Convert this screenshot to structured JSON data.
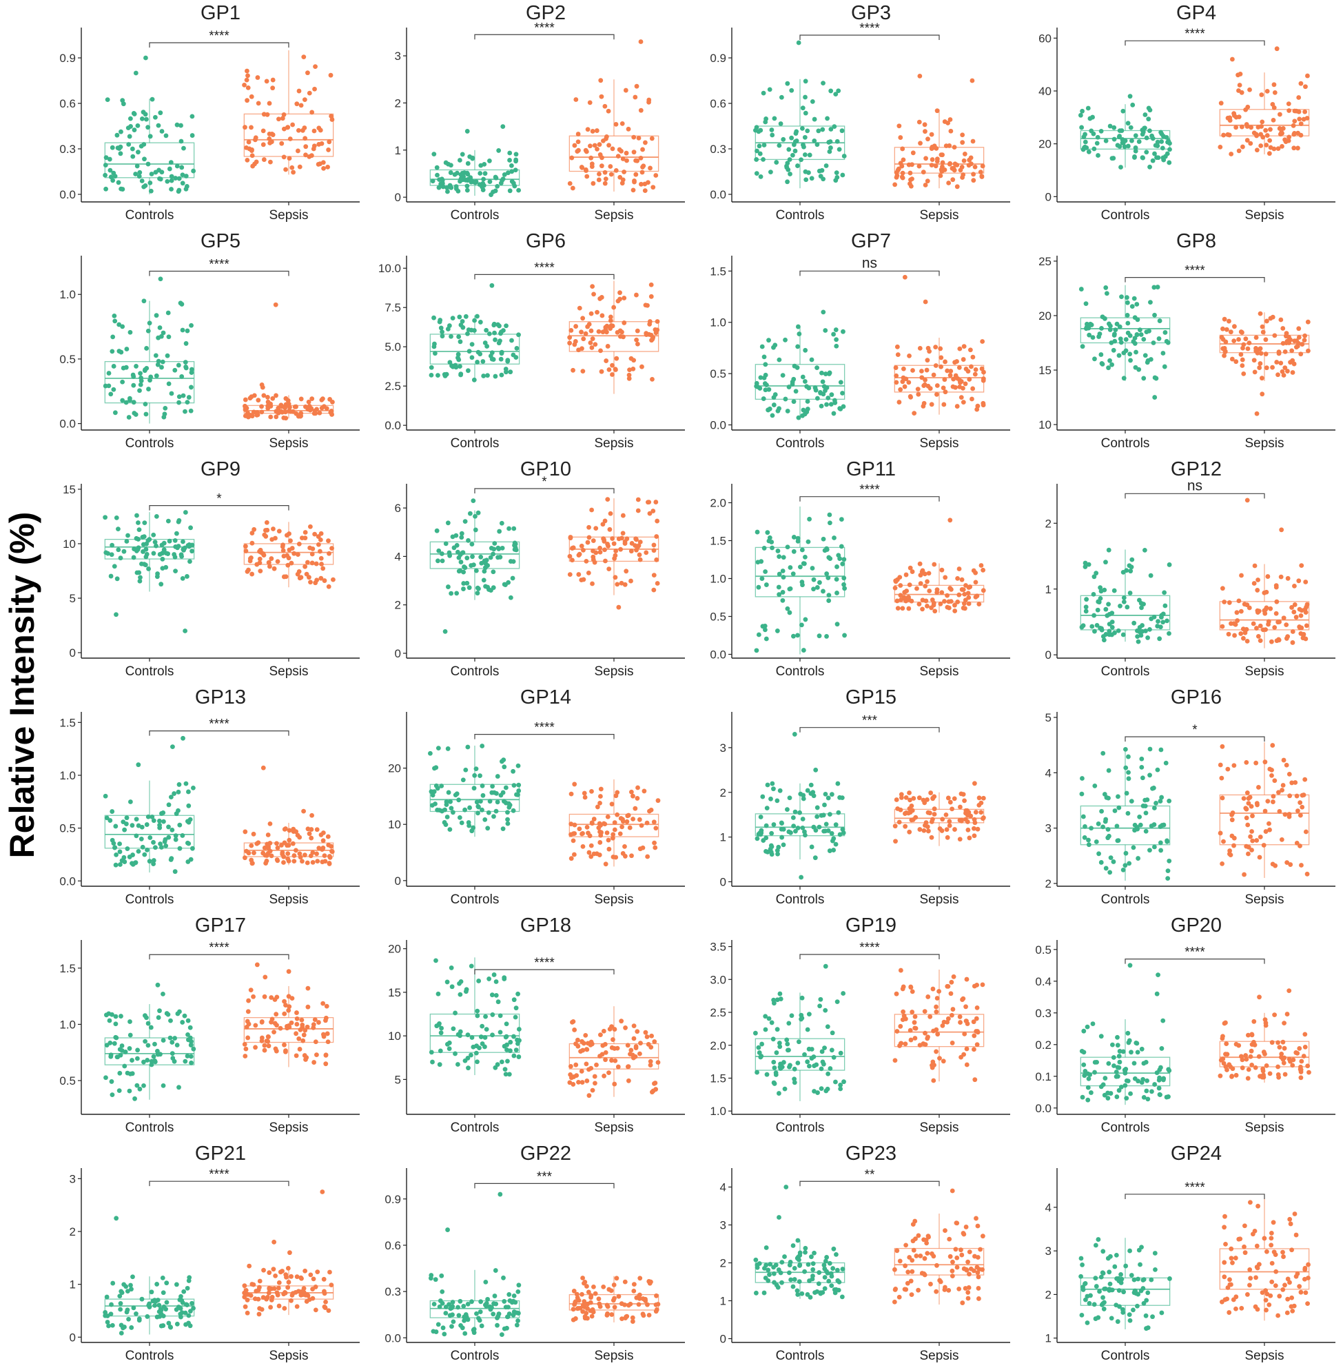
{
  "figure": {
    "ylabel": "Relative Intensity (%)",
    "group_labels": [
      "Controls",
      "Sepsis"
    ],
    "colors": {
      "controls": "#3bb38a",
      "sepsis": "#f47d4a",
      "axis": "#222222",
      "text": "#222222"
    }
  },
  "chart_data": [
    {
      "type": "box",
      "title": "GP1",
      "ylim": [
        -0.05,
        1.1
      ],
      "ticks": [
        0.0,
        0.3,
        0.6,
        0.9
      ],
      "tick_labels": [
        "0.0",
        "0.3",
        "0.6",
        "0.9"
      ],
      "sig": "****",
      "bracket_y": 1.0,
      "groups": [
        {
          "name": "Controls",
          "q1": 0.11,
          "median": 0.2,
          "q3": 0.34,
          "wlo": 0.0,
          "whi": 0.63,
          "outliers": [
            0.8,
            0.9
          ]
        },
        {
          "name": "Sepsis",
          "q1": 0.25,
          "median": 0.36,
          "q3": 0.53,
          "wlo": 0.13,
          "whi": 0.95,
          "outliers": []
        }
      ]
    },
    {
      "type": "box",
      "title": "GP2",
      "ylim": [
        -0.1,
        3.6
      ],
      "ticks": [
        0,
        1,
        2,
        3
      ],
      "tick_labels": [
        "0",
        "1",
        "2",
        "3"
      ],
      "sig": "****",
      "bracket_y": 3.45,
      "groups": [
        {
          "name": "Controls",
          "q1": 0.25,
          "median": 0.38,
          "q3": 0.58,
          "wlo": 0.03,
          "whi": 1.0,
          "outliers": [
            1.4,
            1.5
          ]
        },
        {
          "name": "Sepsis",
          "q1": 0.55,
          "median": 0.85,
          "q3": 1.3,
          "wlo": 0.12,
          "whi": 2.5,
          "outliers": [
            3.3
          ]
        }
      ]
    },
    {
      "type": "box",
      "title": "GP3",
      "ylim": [
        -0.05,
        1.1
      ],
      "ticks": [
        0.0,
        0.3,
        0.6,
        0.9
      ],
      "tick_labels": [
        "0.0",
        "0.3",
        "0.6",
        "0.9"
      ],
      "sig": "****",
      "bracket_y": 1.05,
      "groups": [
        {
          "name": "Controls",
          "q1": 0.23,
          "median": 0.34,
          "q3": 0.45,
          "wlo": 0.04,
          "whi": 0.76,
          "outliers": [
            1.0
          ]
        },
        {
          "name": "Sepsis",
          "q1": 0.14,
          "median": 0.2,
          "q3": 0.31,
          "wlo": 0.04,
          "whi": 0.56,
          "outliers": [
            0.75,
            0.78
          ]
        }
      ]
    },
    {
      "type": "box",
      "title": "GP4",
      "ylim": [
        -2,
        64
      ],
      "ticks": [
        0,
        20,
        40,
        60
      ],
      "tick_labels": [
        "0",
        "20",
        "40",
        "60"
      ],
      "sig": "****",
      "bracket_y": 59,
      "groups": [
        {
          "name": "Controls",
          "q1": 18,
          "median": 22,
          "q3": 25,
          "wlo": 11,
          "whi": 35,
          "outliers": [
            38
          ]
        },
        {
          "name": "Sepsis",
          "q1": 23,
          "median": 27,
          "q3": 33,
          "wlo": 16,
          "whi": 47,
          "outliers": [
            52,
            56
          ]
        }
      ]
    },
    {
      "type": "box",
      "title": "GP5",
      "ylim": [
        -0.05,
        1.3
      ],
      "ticks": [
        0.0,
        0.5,
        1.0
      ],
      "tick_labels": [
        "0.0",
        "0.5",
        "1.0"
      ],
      "sig": "****",
      "bracket_y": 1.18,
      "groups": [
        {
          "name": "Controls",
          "q1": 0.16,
          "median": 0.35,
          "q3": 0.48,
          "wlo": 0.0,
          "whi": 0.95,
          "outliers": [
            1.12
          ]
        },
        {
          "name": "Sepsis",
          "q1": 0.08,
          "median": 0.1,
          "q3": 0.14,
          "wlo": 0.04,
          "whi": 0.22,
          "outliers": [
            0.28,
            0.3,
            0.92
          ]
        }
      ]
    },
    {
      "type": "box",
      "title": "GP6",
      "ylim": [
        -0.3,
        10.8
      ],
      "ticks": [
        0.0,
        2.5,
        5.0,
        7.5,
        10.0
      ],
      "tick_labels": [
        "0.0",
        "2.5",
        "5.0",
        "7.5",
        "10.0"
      ],
      "sig": "****",
      "bracket_y": 9.6,
      "groups": [
        {
          "name": "Controls",
          "q1": 3.9,
          "median": 4.7,
          "q3": 5.8,
          "wlo": 2.8,
          "whi": 7.0,
          "outliers": [
            8.9
          ]
        },
        {
          "name": "Sepsis",
          "q1": 4.7,
          "median": 5.7,
          "q3": 6.6,
          "wlo": 2.0,
          "whi": 9.2,
          "outliers": []
        }
      ]
    },
    {
      "type": "box",
      "title": "GP7",
      "ylim": [
        -0.05,
        1.65
      ],
      "ticks": [
        0.0,
        0.5,
        1.0,
        1.5
      ],
      "tick_labels": [
        "0.0",
        "0.5",
        "1.0",
        "1.5"
      ],
      "sig": "ns",
      "bracket_y": 1.5,
      "groups": [
        {
          "name": "Controls",
          "q1": 0.25,
          "median": 0.38,
          "q3": 0.59,
          "wlo": 0.05,
          "whi": 0.96,
          "outliers": [
            1.1
          ]
        },
        {
          "name": "Sepsis",
          "q1": 0.32,
          "median": 0.46,
          "q3": 0.58,
          "wlo": 0.1,
          "whi": 0.85,
          "outliers": [
            1.2,
            1.44
          ]
        }
      ]
    },
    {
      "type": "box",
      "title": "GP8",
      "ylim": [
        9.5,
        25.5
      ],
      "ticks": [
        10,
        15,
        20,
        25
      ],
      "tick_labels": [
        "10",
        "15",
        "20",
        "25"
      ],
      "sig": "****",
      "bracket_y": 23.5,
      "groups": [
        {
          "name": "Controls",
          "q1": 17.5,
          "median": 18.8,
          "q3": 19.8,
          "wlo": 14.0,
          "whi": 22.8,
          "outliers": [
            12.5
          ]
        },
        {
          "name": "Sepsis",
          "q1": 16.6,
          "median": 17.4,
          "q3": 18.2,
          "wlo": 14.0,
          "whi": 20.3,
          "outliers": [
            11.0,
            12.8
          ]
        }
      ]
    },
    {
      "type": "box",
      "title": "GP9",
      "ylim": [
        -0.5,
        15.5
      ],
      "ticks": [
        0,
        5,
        10,
        15
      ],
      "tick_labels": [
        "0",
        "5",
        "10",
        "15"
      ],
      "sig": "*",
      "bracket_y": 13.5,
      "groups": [
        {
          "name": "Controls",
          "q1": 8.6,
          "median": 9.7,
          "q3": 10.4,
          "wlo": 5.6,
          "whi": 12.9,
          "outliers": [
            2.0,
            3.5
          ]
        },
        {
          "name": "Sepsis",
          "q1": 8.1,
          "median": 9.2,
          "q3": 10.0,
          "wlo": 6.0,
          "whi": 12.0,
          "outliers": []
        }
      ]
    },
    {
      "type": "box",
      "title": "GP10",
      "ylim": [
        -0.2,
        7.0
      ],
      "ticks": [
        0,
        2,
        4,
        6
      ],
      "tick_labels": [
        "0",
        "2",
        "4",
        "6"
      ],
      "sig": "*",
      "bracket_y": 6.8,
      "groups": [
        {
          "name": "Controls",
          "q1": 3.5,
          "median": 4.1,
          "q3": 4.6,
          "wlo": 2.2,
          "whi": 5.9,
          "outliers": [
            0.9,
            6.3
          ]
        },
        {
          "name": "Sepsis",
          "q1": 3.8,
          "median": 4.3,
          "q3": 4.8,
          "wlo": 2.4,
          "whi": 6.4,
          "outliers": [
            1.9
          ]
        }
      ]
    },
    {
      "type": "box",
      "title": "GP11",
      "ylim": [
        -0.05,
        2.25
      ],
      "ticks": [
        0.0,
        0.5,
        1.0,
        1.5,
        2.0
      ],
      "tick_labels": [
        "0.0",
        "0.5",
        "1.0",
        "1.5",
        "2.0"
      ],
      "sig": "****",
      "bracket_y": 2.08,
      "groups": [
        {
          "name": "Controls",
          "q1": 0.76,
          "median": 1.03,
          "q3": 1.41,
          "wlo": 0.0,
          "whi": 1.95,
          "outliers": []
        },
        {
          "name": "Sepsis",
          "q1": 0.69,
          "median": 0.79,
          "q3": 0.91,
          "wlo": 0.55,
          "whi": 1.2,
          "outliers": [
            1.77
          ]
        }
      ]
    },
    {
      "type": "box",
      "title": "GP12",
      "ylim": [
        -0.05,
        2.6
      ],
      "ticks": [
        0,
        1,
        2
      ],
      "tick_labels": [
        "0",
        "1",
        "2"
      ],
      "sig": "ns",
      "bracket_y": 2.45,
      "groups": [
        {
          "name": "Controls",
          "q1": 0.38,
          "median": 0.6,
          "q3": 0.9,
          "wlo": 0.2,
          "whi": 1.6,
          "outliers": []
        },
        {
          "name": "Sepsis",
          "q1": 0.38,
          "median": 0.53,
          "q3": 0.81,
          "wlo": 0.1,
          "whi": 1.38,
          "outliers": [
            1.9,
            2.35
          ]
        }
      ]
    },
    {
      "type": "box",
      "title": "GP13",
      "ylim": [
        -0.05,
        1.6
      ],
      "ticks": [
        0.0,
        0.5,
        1.0,
        1.5
      ],
      "tick_labels": [
        "0.0",
        "0.5",
        "1.0",
        "1.5"
      ],
      "sig": "****",
      "bracket_y": 1.42,
      "groups": [
        {
          "name": "Controls",
          "q1": 0.31,
          "median": 0.44,
          "q3": 0.62,
          "wlo": 0.08,
          "whi": 0.95,
          "outliers": [
            1.1,
            1.27,
            1.35
          ]
        },
        {
          "name": "Sepsis",
          "q1": 0.23,
          "median": 0.29,
          "q3": 0.36,
          "wlo": 0.15,
          "whi": 0.55,
          "outliers": [
            0.62,
            0.66,
            1.07
          ]
        }
      ]
    },
    {
      "type": "box",
      "title": "GP14",
      "ylim": [
        -1,
        30
      ],
      "ticks": [
        0,
        10,
        20
      ],
      "tick_labels": [
        "0",
        "10",
        "20"
      ],
      "sig": "****",
      "bracket_y": 26,
      "groups": [
        {
          "name": "Controls",
          "q1": 12.3,
          "median": 14.4,
          "q3": 17.1,
          "wlo": 7.8,
          "whi": 24.0,
          "outliers": []
        },
        {
          "name": "Sepsis",
          "q1": 7.8,
          "median": 10.0,
          "q3": 11.8,
          "wlo": 2.5,
          "whi": 18.0,
          "outliers": []
        }
      ]
    },
    {
      "type": "box",
      "title": "GP15",
      "ylim": [
        -0.1,
        3.8
      ],
      "ticks": [
        0,
        1,
        2,
        3
      ],
      "tick_labels": [
        "0",
        "1",
        "2",
        "3"
      ],
      "sig": "***",
      "bracket_y": 3.45,
      "groups": [
        {
          "name": "Controls",
          "q1": 1.03,
          "median": 1.22,
          "q3": 1.52,
          "wlo": 0.5,
          "whi": 2.2,
          "outliers": [
            0.1,
            2.5,
            3.3
          ]
        },
        {
          "name": "Sepsis",
          "q1": 1.32,
          "median": 1.42,
          "q3": 1.62,
          "wlo": 0.8,
          "whi": 2.0,
          "outliers": [
            2.2
          ]
        }
      ]
    },
    {
      "type": "box",
      "title": "GP16",
      "ylim": [
        1.95,
        5.1
      ],
      "ticks": [
        2,
        3,
        4,
        5
      ],
      "tick_labels": [
        "2",
        "3",
        "4",
        "5"
      ],
      "sig": "*",
      "bracket_y": 4.65,
      "groups": [
        {
          "name": "Controls",
          "q1": 2.7,
          "median": 3.0,
          "q3": 3.4,
          "wlo": 2.05,
          "whi": 4.45,
          "outliers": []
        },
        {
          "name": "Sepsis",
          "q1": 2.7,
          "median": 3.27,
          "q3": 3.6,
          "wlo": 2.1,
          "whi": 4.55,
          "outliers": []
        }
      ]
    },
    {
      "type": "box",
      "title": "GP17",
      "ylim": [
        0.2,
        1.75
      ],
      "ticks": [
        0.5,
        1.0,
        1.5
      ],
      "tick_labels": [
        "0.5",
        "1.0",
        "1.5"
      ],
      "sig": "****",
      "bracket_y": 1.62,
      "groups": [
        {
          "name": "Controls",
          "q1": 0.64,
          "median": 0.74,
          "q3": 0.88,
          "wlo": 0.33,
          "whi": 1.18,
          "outliers": [
            1.27,
            1.35
          ]
        },
        {
          "name": "Sepsis",
          "q1": 0.84,
          "median": 0.96,
          "q3": 1.06,
          "wlo": 0.62,
          "whi": 1.34,
          "outliers": [
            1.42,
            1.47,
            1.53
          ]
        }
      ]
    },
    {
      "type": "box",
      "title": "GP18",
      "ylim": [
        1,
        21
      ],
      "ticks": [
        5,
        10,
        15,
        20
      ],
      "tick_labels": [
        "5",
        "10",
        "15",
        "20"
      ],
      "sig": "****",
      "bracket_y": 17.6,
      "groups": [
        {
          "name": "Controls",
          "q1": 8.1,
          "median": 10.0,
          "q3": 12.5,
          "wlo": 5.5,
          "whi": 19.0,
          "outliers": []
        },
        {
          "name": "Sepsis",
          "q1": 6.2,
          "median": 7.5,
          "q3": 9.1,
          "wlo": 3.0,
          "whi": 13.4,
          "outliers": []
        }
      ]
    },
    {
      "type": "box",
      "title": "GP19",
      "ylim": [
        0.95,
        3.6
      ],
      "ticks": [
        1.0,
        1.5,
        2.0,
        2.5,
        3.0,
        3.5
      ],
      "tick_labels": [
        "1.0",
        "1.5",
        "2.0",
        "2.5",
        "3.0",
        "3.5"
      ],
      "sig": "****",
      "bracket_y": 3.38,
      "groups": [
        {
          "name": "Controls",
          "q1": 1.62,
          "median": 1.83,
          "q3": 2.1,
          "wlo": 1.15,
          "whi": 2.8,
          "outliers": [
            3.2
          ]
        },
        {
          "name": "Sepsis",
          "q1": 1.98,
          "median": 2.2,
          "q3": 2.47,
          "wlo": 1.45,
          "whi": 3.15,
          "outliers": []
        }
      ]
    },
    {
      "type": "box",
      "title": "GP20",
      "ylim": [
        -0.02,
        0.53
      ],
      "ticks": [
        0.0,
        0.1,
        0.2,
        0.3,
        0.4,
        0.5
      ],
      "tick_labels": [
        "0.0",
        "0.1",
        "0.2",
        "0.3",
        "0.4",
        "0.5"
      ],
      "sig": "****",
      "bracket_y": 0.47,
      "groups": [
        {
          "name": "Controls",
          "q1": 0.07,
          "median": 0.11,
          "q3": 0.16,
          "wlo": 0.01,
          "whi": 0.28,
          "outliers": [
            0.36,
            0.42,
            0.45
          ]
        },
        {
          "name": "Sepsis",
          "q1": 0.13,
          "median": 0.16,
          "q3": 0.21,
          "wlo": 0.08,
          "whi": 0.3,
          "outliers": [
            0.35,
            0.37
          ]
        }
      ]
    },
    {
      "type": "box",
      "title": "GP21",
      "ylim": [
        -0.1,
        3.2
      ],
      "ticks": [
        0,
        1,
        2,
        3
      ],
      "tick_labels": [
        "0",
        "1",
        "2",
        "3"
      ],
      "sig": "****",
      "bracket_y": 2.95,
      "groups": [
        {
          "name": "Controls",
          "q1": 0.4,
          "median": 0.59,
          "q3": 0.72,
          "wlo": 0.05,
          "whi": 1.15,
          "outliers": [
            2.25
          ]
        },
        {
          "name": "Sepsis",
          "q1": 0.72,
          "median": 0.84,
          "q3": 0.97,
          "wlo": 0.42,
          "whi": 1.35,
          "outliers": [
            1.6,
            1.8,
            2.75
          ]
        }
      ]
    },
    {
      "type": "box",
      "title": "GP22",
      "ylim": [
        -0.03,
        1.1
      ],
      "ticks": [
        0.0,
        0.3,
        0.6,
        0.9
      ],
      "tick_labels": [
        "0.0",
        "0.3",
        "0.6",
        "0.9"
      ],
      "sig": "***",
      "bracket_y": 1.0,
      "groups": [
        {
          "name": "Controls",
          "q1": 0.13,
          "median": 0.19,
          "q3": 0.24,
          "wlo": 0.02,
          "whi": 0.44,
          "outliers": [
            0.7,
            0.93
          ]
        },
        {
          "name": "Sepsis",
          "q1": 0.18,
          "median": 0.22,
          "q3": 0.28,
          "wlo": 0.1,
          "whi": 0.4,
          "outliers": []
        }
      ]
    },
    {
      "type": "box",
      "title": "GP23",
      "ylim": [
        -0.1,
        4.5
      ],
      "ticks": [
        0,
        1,
        2,
        3,
        4
      ],
      "tick_labels": [
        "0",
        "1",
        "2",
        "3",
        "4"
      ],
      "sig": "**",
      "bracket_y": 4.15,
      "groups": [
        {
          "name": "Controls",
          "q1": 1.48,
          "median": 1.75,
          "q3": 2.0,
          "wlo": 1.05,
          "whi": 2.6,
          "outliers": [
            3.2,
            4.0
          ]
        },
        {
          "name": "Sepsis",
          "q1": 1.68,
          "median": 1.95,
          "q3": 2.38,
          "wlo": 0.9,
          "whi": 3.3,
          "outliers": [
            3.9
          ]
        }
      ]
    },
    {
      "type": "box",
      "title": "GP24",
      "ylim": [
        0.9,
        4.9
      ],
      "ticks": [
        1,
        2,
        3,
        4
      ],
      "tick_labels": [
        "1",
        "2",
        "3",
        "4"
      ],
      "sig": "****",
      "bracket_y": 4.3,
      "groups": [
        {
          "name": "Controls",
          "q1": 1.75,
          "median": 2.12,
          "q3": 2.38,
          "wlo": 1.2,
          "whi": 3.3,
          "outliers": []
        },
        {
          "name": "Sepsis",
          "q1": 2.12,
          "median": 2.52,
          "q3": 3.05,
          "wlo": 1.4,
          "whi": 4.2,
          "outliers": []
        }
      ]
    }
  ]
}
